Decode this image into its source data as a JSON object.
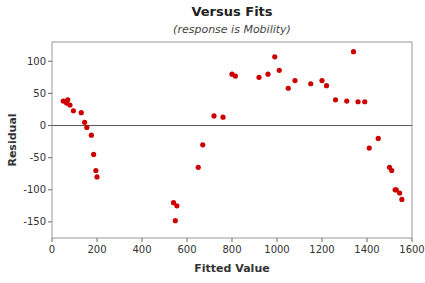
{
  "chart_data": {
    "type": "scatter",
    "title": "Versus Fits",
    "subtitle": "(response is Mobility)",
    "xlabel": "Fitted Value",
    "ylabel": "Residual",
    "x": [
      50,
      65,
      70,
      80,
      95,
      130,
      145,
      155,
      175,
      185,
      195,
      200,
      540,
      548,
      555,
      650,
      670,
      720,
      760,
      800,
      815,
      920,
      960,
      990,
      1010,
      1050,
      1080,
      1150,
      1200,
      1220,
      1260,
      1310,
      1340,
      1360,
      1390,
      1410,
      1450,
      1500,
      1510,
      1525,
      1530,
      1545,
      1555
    ],
    "values": [
      38,
      35,
      40,
      32,
      23,
      20,
      5,
      -3,
      -15,
      -45,
      -70,
      -80,
      -120,
      -148,
      -125,
      -65,
      -30,
      15,
      13,
      80,
      77,
      75,
      80,
      107,
      86,
      58,
      70,
      65,
      70,
      62,
      40,
      38,
      115,
      37,
      37,
      -35,
      -20,
      -65,
      -70,
      -100,
      -100,
      -105,
      -115
    ],
    "color": "#cc0000",
    "hline": 0,
    "xlim": [
      0,
      1600
    ],
    "ylim": [
      -175,
      130
    ],
    "xticks": [
      0,
      200,
      400,
      600,
      800,
      1000,
      1200,
      1400,
      1600
    ],
    "yticks": [
      -150,
      -100,
      -50,
      0,
      50,
      100
    ],
    "grid": false
  }
}
